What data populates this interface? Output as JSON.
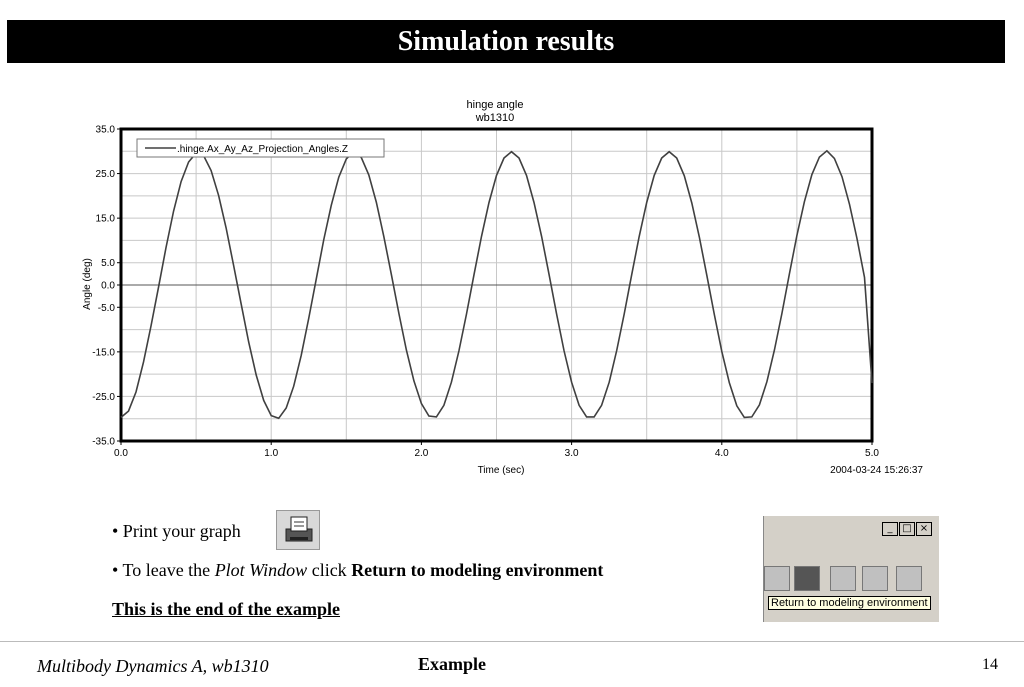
{
  "slide": {
    "title": "Simulation results",
    "bullets": {
      "print": "• Print your graph",
      "leave_prefix": "• To leave the ",
      "leave_italic": "Plot Window",
      "leave_mid": " click ",
      "leave_bold": "Return to modeling environment",
      "end": "This is the end of the example"
    },
    "toolbar": {
      "tooltip": "Return to modeling environment",
      "minimize": "_",
      "maximize": "□",
      "close": "×"
    },
    "footer": {
      "left": "Multibody Dynamics A, wb1310",
      "center": "Example",
      "page": "14"
    }
  },
  "chart_data": {
    "type": "line",
    "title": "hinge angle",
    "subtitle": "wb1310",
    "xlabel": "Time (sec)",
    "ylabel": "Angle (deg)",
    "xlim": [
      0.0,
      5.0
    ],
    "ylim": [
      -35.0,
      35.0
    ],
    "xticks": [
      "0.0",
      "1.0",
      "2.0",
      "3.0",
      "4.0",
      "5.0"
    ],
    "yticks": [
      "35.0",
      "25.0",
      "15.0",
      "5.0",
      "0.0",
      "-5.0",
      "-15.0",
      "-25.0",
      "-35.0"
    ],
    "ytick_values": [
      35,
      25,
      15,
      5,
      0,
      -5,
      -15,
      -25,
      -35
    ],
    "xtick_values": [
      0,
      1,
      2,
      3,
      4,
      5
    ],
    "grid": true,
    "legend": "top-left",
    "timestamp": "2004-03-24 15:26:37",
    "series": [
      {
        "name": ".hinge.Ax_Ay_Az_Projection_Angles.Z",
        "color": "#404040",
        "x": [
          0.0,
          0.05,
          0.1,
          0.15,
          0.2,
          0.25,
          0.3,
          0.35,
          0.4,
          0.45,
          0.5,
          0.55,
          0.6,
          0.65,
          0.7,
          0.75,
          0.8,
          0.85,
          0.9,
          0.95,
          1.0,
          1.05,
          1.1,
          1.15,
          1.2,
          1.25,
          1.3,
          1.35,
          1.4,
          1.45,
          1.5,
          1.55,
          1.6,
          1.65,
          1.7,
          1.75,
          1.8,
          1.85,
          1.9,
          1.95,
          2.0,
          2.05,
          2.1,
          2.15,
          2.2,
          2.25,
          2.3,
          2.35,
          2.4,
          2.45,
          2.5,
          2.55,
          2.6,
          2.65,
          2.7,
          2.75,
          2.8,
          2.85,
          2.9,
          2.95,
          3.0,
          3.05,
          3.1,
          3.15,
          3.2,
          3.25,
          3.3,
          3.35,
          3.4,
          3.45,
          3.5,
          3.55,
          3.6,
          3.65,
          3.7,
          3.75,
          3.8,
          3.85,
          3.9,
          3.95,
          4.0,
          4.05,
          4.1,
          4.15,
          4.2,
          4.25,
          4.3,
          4.35,
          4.4,
          4.45,
          4.5,
          4.55,
          4.6,
          4.65,
          4.7,
          4.75,
          4.8,
          4.85,
          4.9,
          4.95,
          5.0
        ],
        "values": [
          -29.7,
          -28.3,
          -24.0,
          -17.3,
          -9.2,
          -0.4,
          8.5,
          16.6,
          23.2,
          27.6,
          29.6,
          29.0,
          25.7,
          20.1,
          12.8,
          4.4,
          -4.3,
          -12.8,
          -20.2,
          -25.9,
          -29.3,
          -29.9,
          -27.6,
          -22.7,
          -15.8,
          -7.4,
          1.4,
          10.2,
          17.9,
          24.2,
          28.3,
          29.9,
          28.6,
          24.7,
          18.6,
          10.9,
          2.3,
          -6.4,
          -14.6,
          -21.5,
          -26.6,
          -29.4,
          -29.6,
          -27.0,
          -21.8,
          -14.8,
          -6.5,
          2.3,
          10.9,
          18.5,
          24.6,
          28.5,
          29.9,
          28.5,
          24.6,
          18.5,
          10.9,
          2.3,
          -6.5,
          -14.8,
          -21.8,
          -27.0,
          -29.6,
          -29.6,
          -27.0,
          -21.8,
          -14.7,
          -6.5,
          2.3,
          10.9,
          18.5,
          24.6,
          28.5,
          29.9,
          28.5,
          24.5,
          18.4,
          10.8,
          2.2,
          -6.6,
          -14.9,
          -21.9,
          -27.1,
          -29.7,
          -29.6,
          -26.9,
          -21.7,
          -14.6,
          -6.4,
          2.5,
          11.1,
          18.7,
          24.8,
          28.7,
          30.1,
          28.4,
          24.3,
          18.1,
          10.4,
          1.7,
          -22.0
        ]
      }
    ]
  }
}
